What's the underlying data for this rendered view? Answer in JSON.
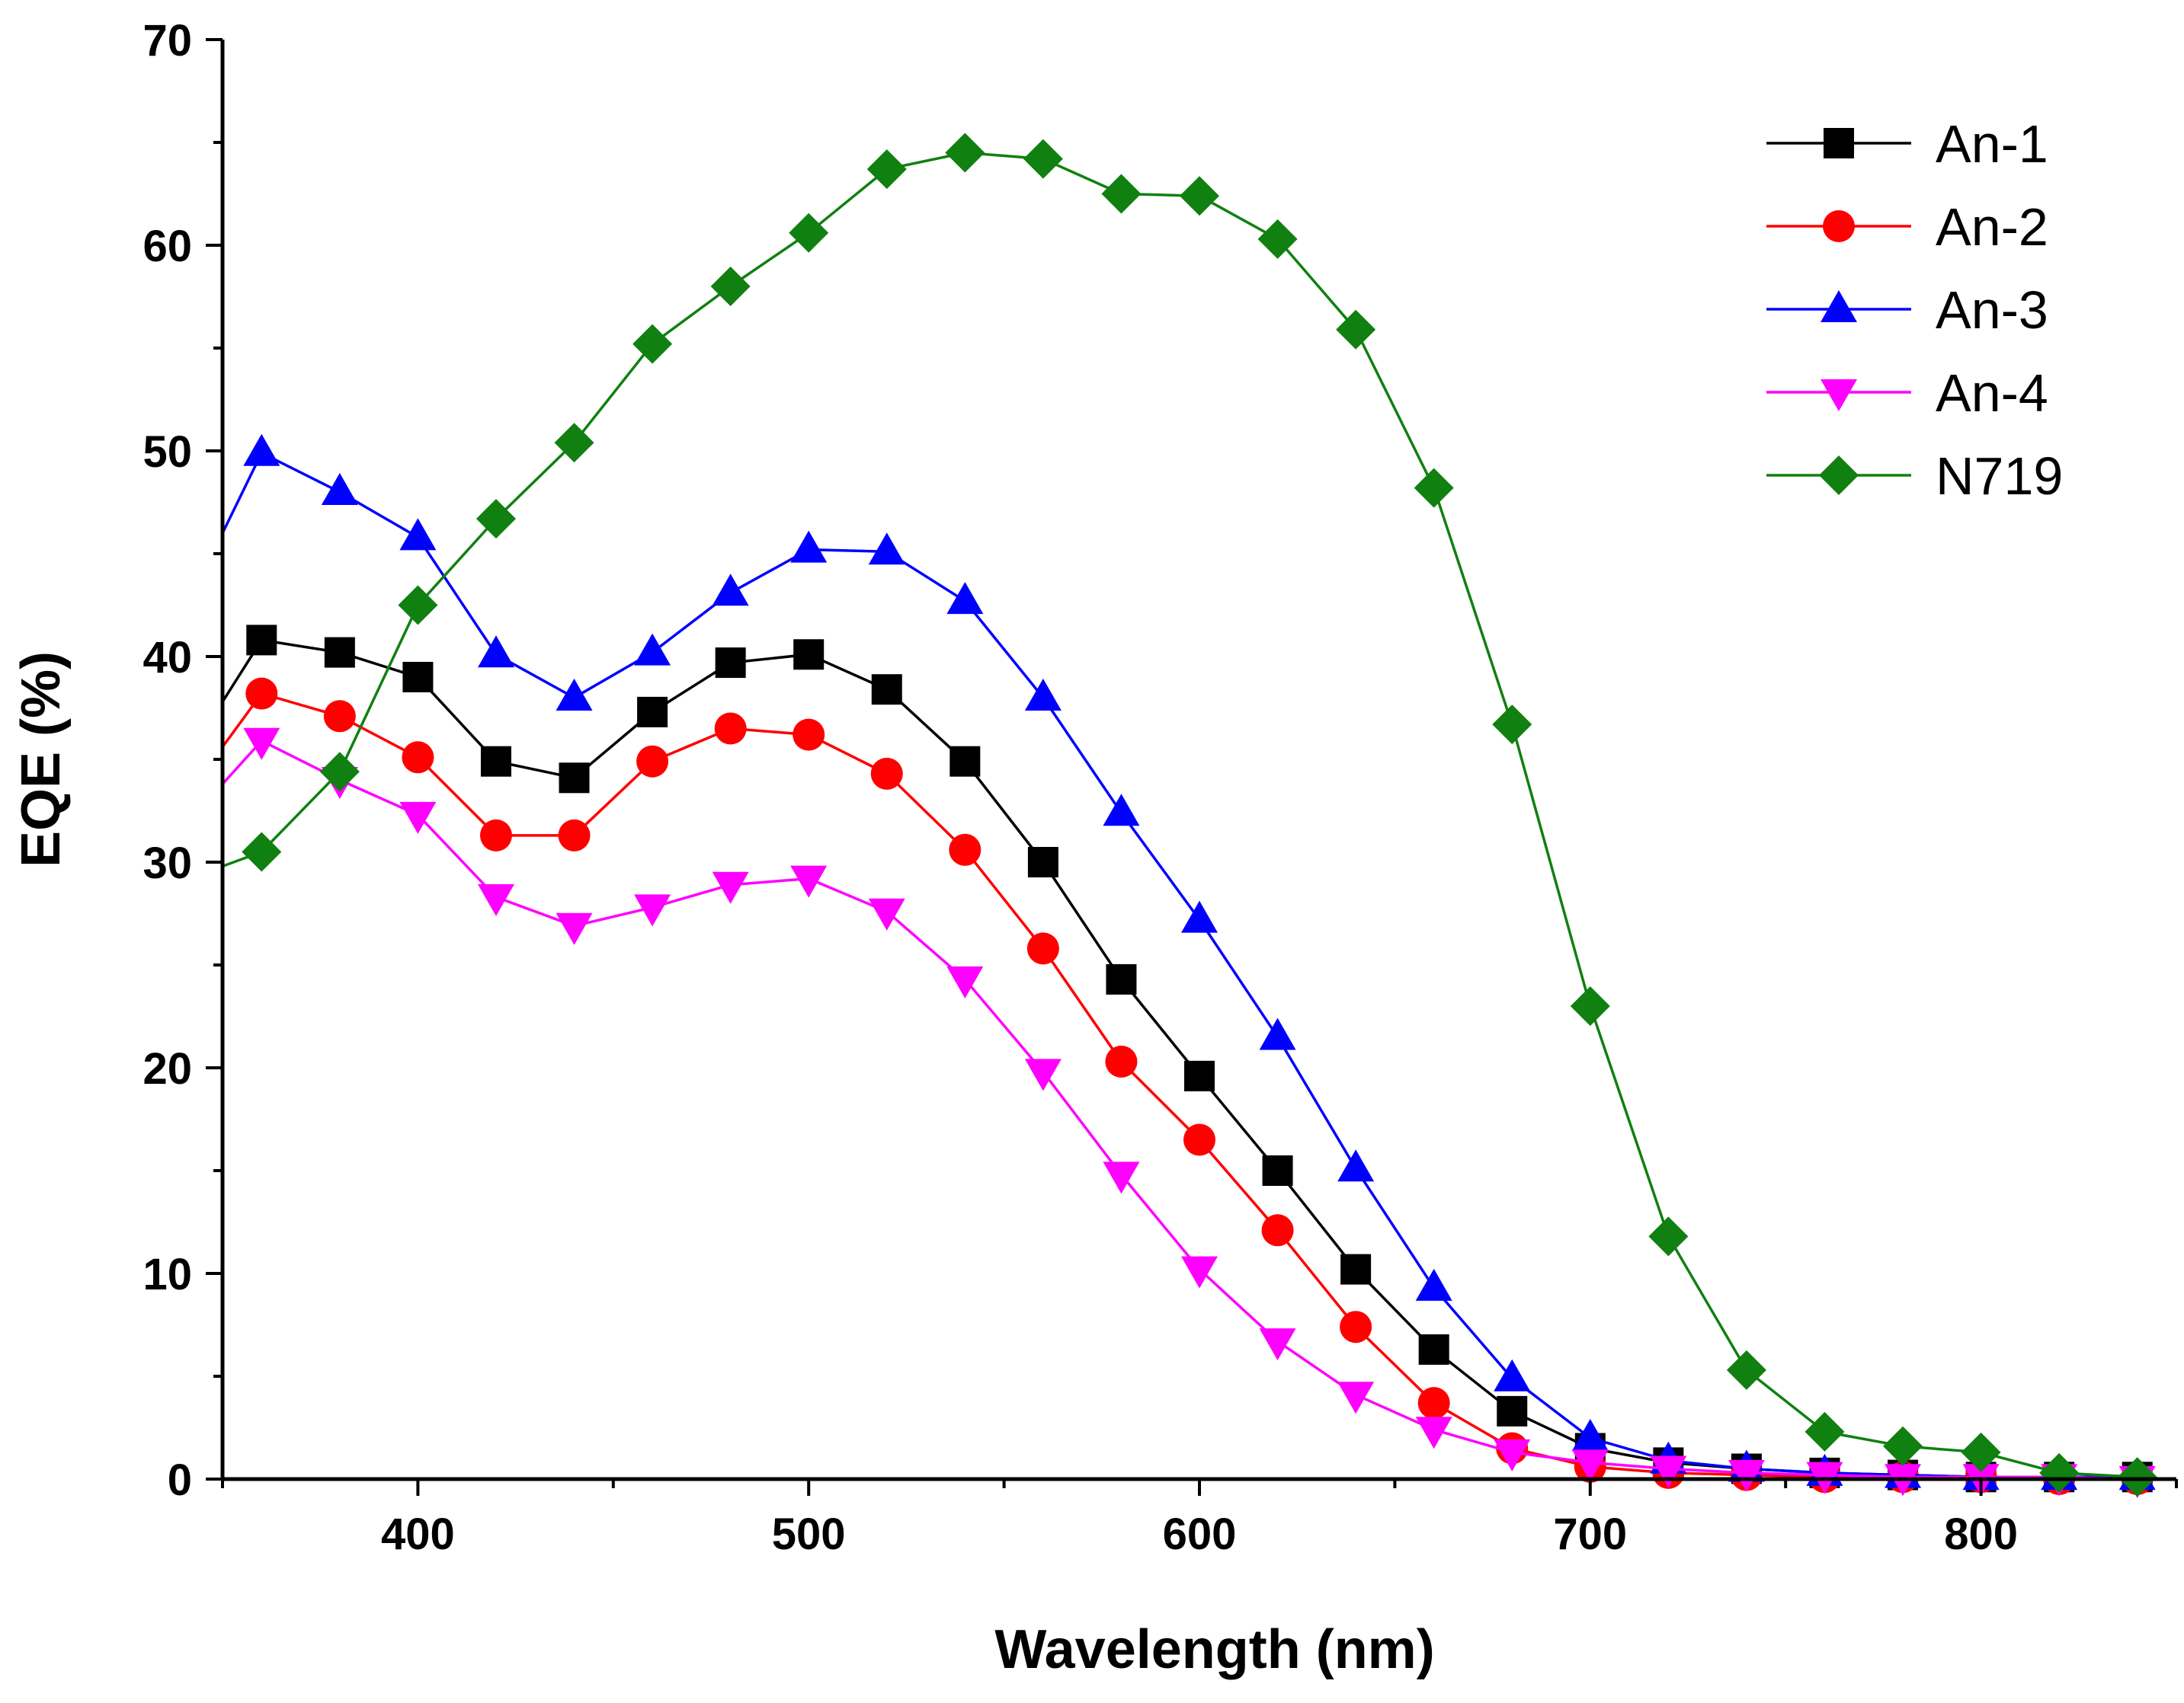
{
  "chart_data": {
    "type": "line",
    "title": "",
    "xlabel": "Wavelength (nm)",
    "ylabel": "EQE (%)",
    "xlim": [
      350,
      850
    ],
    "ylim": [
      0,
      70
    ],
    "xticks": [
      400,
      500,
      600,
      700,
      800
    ],
    "yticks": [
      0,
      10,
      20,
      30,
      40,
      50,
      60,
      70
    ],
    "grid": false,
    "legend_position": "top-right",
    "series": [
      {
        "name": "An-1",
        "color": "#000000",
        "marker": "square",
        "x": [
          360,
          380,
          400,
          420,
          440,
          460,
          480,
          500,
          520,
          540,
          560,
          580,
          600,
          620,
          640,
          660,
          680,
          700,
          720,
          740,
          760,
          780,
          800,
          820,
          840
        ],
        "y": [
          40.8,
          40.2,
          39.0,
          34.9,
          34.1,
          37.3,
          39.7,
          40.1,
          38.4,
          34.9,
          30.0,
          24.3,
          19.6,
          15.0,
          10.2,
          6.3,
          3.3,
          1.5,
          0.8,
          0.5,
          0.3,
          0.2,
          0.1,
          0.1,
          0.1
        ],
        "start": 37.8
      },
      {
        "name": "An-2",
        "color": "#ff0000",
        "marker": "circle",
        "x": [
          360,
          380,
          400,
          420,
          440,
          460,
          480,
          500,
          520,
          540,
          560,
          580,
          600,
          620,
          640,
          660,
          680,
          700,
          720,
          740,
          760,
          780,
          800,
          820,
          840
        ],
        "y": [
          38.2,
          37.1,
          35.1,
          31.3,
          31.3,
          34.9,
          36.5,
          36.2,
          34.3,
          30.6,
          25.8,
          20.3,
          16.5,
          12.1,
          7.4,
          3.7,
          1.5,
          0.6,
          0.3,
          0.2,
          0.1,
          0.1,
          0.1,
          0.0,
          0.0
        ],
        "start": 35.6
      },
      {
        "name": "An-3",
        "color": "#0000ff",
        "marker": "triangle-up",
        "x": [
          360,
          380,
          400,
          420,
          440,
          460,
          480,
          500,
          520,
          540,
          560,
          580,
          600,
          620,
          640,
          660,
          680,
          700,
          720,
          740,
          760,
          780,
          800,
          820,
          840
        ],
        "y": [
          49.9,
          48.0,
          45.8,
          40.1,
          38.0,
          40.2,
          43.1,
          45.2,
          45.1,
          42.7,
          38.0,
          32.4,
          27.2,
          21.5,
          15.1,
          9.3,
          4.9,
          2.0,
          0.9,
          0.5,
          0.3,
          0.2,
          0.1,
          0.1,
          0.1
        ],
        "start": 46.0
      },
      {
        "name": "An-4",
        "color": "#ff00ff",
        "marker": "triangle-down",
        "x": [
          360,
          380,
          400,
          420,
          440,
          460,
          480,
          500,
          520,
          540,
          560,
          580,
          600,
          620,
          640,
          660,
          680,
          700,
          720,
          740,
          760,
          780,
          800,
          820,
          840
        ],
        "y": [
          35.9,
          34.0,
          32.3,
          28.3,
          26.9,
          27.8,
          28.9,
          29.2,
          27.6,
          24.3,
          19.8,
          14.8,
          10.2,
          6.7,
          4.1,
          2.4,
          1.3,
          0.8,
          0.5,
          0.3,
          0.2,
          0.1,
          0.1,
          0.1,
          0.0
        ],
        "start": 33.8
      },
      {
        "name": "N719",
        "color": "#108010",
        "marker": "diamond",
        "x": [
          360,
          380,
          400,
          420,
          440,
          460,
          480,
          500,
          520,
          540,
          560,
          580,
          600,
          620,
          640,
          660,
          680,
          700,
          720,
          740,
          760,
          780,
          800,
          820,
          840
        ],
        "y": [
          30.5,
          34.4,
          42.5,
          46.7,
          50.4,
          55.2,
          58.0,
          60.6,
          63.7,
          64.5,
          64.2,
          62.5,
          62.4,
          60.3,
          55.9,
          48.2,
          36.7,
          23.0,
          11.8,
          5.3,
          2.3,
          1.6,
          1.3,
          0.3,
          0.1
        ],
        "start": 29.8
      }
    ]
  }
}
